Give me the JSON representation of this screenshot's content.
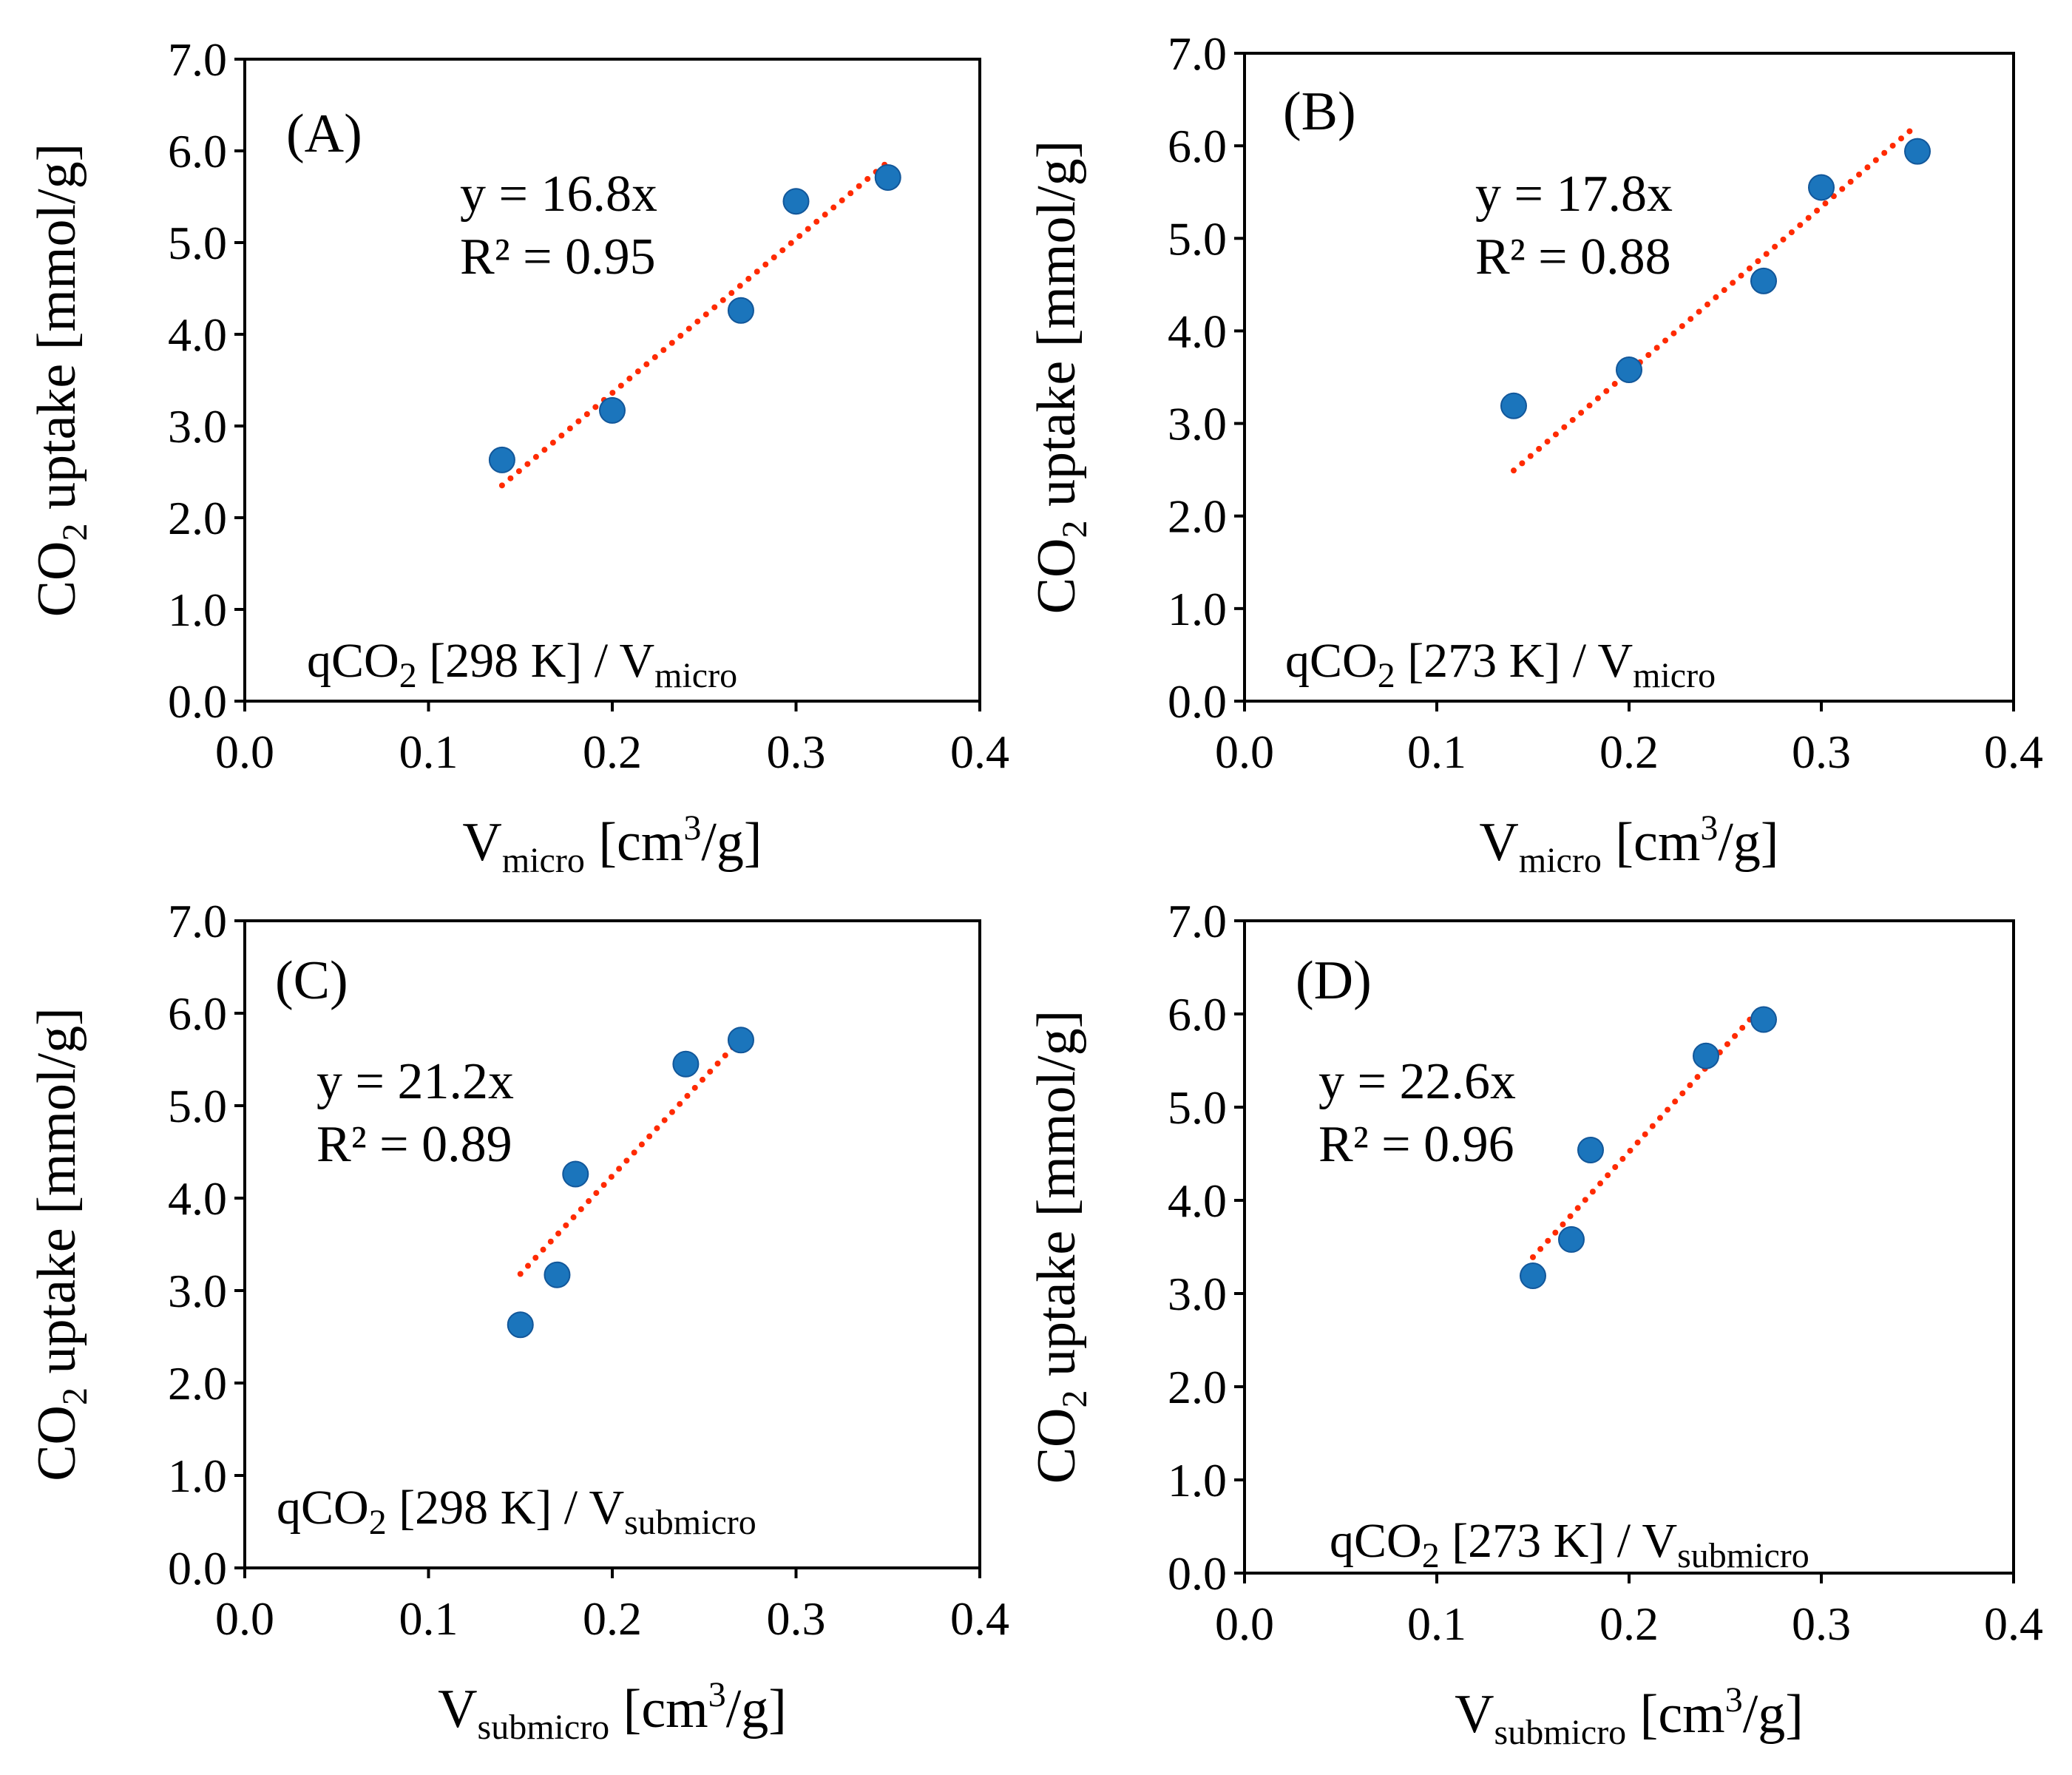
{
  "colors": {
    "point": "#1b75bc",
    "point_edge": "#12579a",
    "trendline": "#ff2a00",
    "axis": "#000000",
    "background": "#ffffff"
  },
  "chart_data": [
    {
      "type": "scatter",
      "panel_label": "(A)",
      "x": [
        0.14,
        0.2,
        0.27,
        0.3,
        0.35
      ],
      "y": [
        2.63,
        3.17,
        4.26,
        5.45,
        5.71
      ],
      "trendline": {
        "type": "linear-through-origin",
        "slope": 16.8,
        "x_range": [
          0.14,
          0.35
        ]
      },
      "equation": "y = 16.8x",
      "r_squared": "R² = 0.95",
      "note": {
        "base": "qCO",
        "sub": "2",
        "mid": " [298 K] / V",
        "tail_sub": "micro"
      },
      "xlabel": {
        "main": "V",
        "sub": "micro",
        "rest": " [cm",
        "sup": "3",
        "end": "/g]"
      },
      "ylabel": {
        "main": "CO",
        "sub": "2",
        "rest": " uptake [mmol/g]"
      },
      "xlim": [
        0.0,
        0.4
      ],
      "ylim": [
        0.0,
        7.0
      ],
      "xticks": [
        "0.0",
        "0.1",
        "0.2",
        "0.3",
        "0.4"
      ],
      "yticks": [
        "0.0",
        "1.0",
        "2.0",
        "3.0",
        "4.0",
        "5.0",
        "6.0",
        "7.0"
      ]
    },
    {
      "type": "scatter",
      "panel_label": "(B)",
      "x": [
        0.14,
        0.2,
        0.27,
        0.3,
        0.35
      ],
      "y": [
        3.19,
        3.58,
        4.54,
        5.55,
        5.94
      ],
      "trendline": {
        "type": "linear-through-origin",
        "slope": 17.8,
        "x_range": [
          0.14,
          0.35
        ]
      },
      "equation": "y = 17.8x",
      "r_squared": "R² = 0.88",
      "note": {
        "base": "qCO",
        "sub": "2",
        "mid": " [273 K] / V",
        "tail_sub": "micro"
      },
      "xlabel": {
        "main": "V",
        "sub": "micro",
        "rest": " [cm",
        "sup": "3",
        "end": "/g]"
      },
      "ylabel": {
        "main": "CO",
        "sub": "2",
        "rest": " uptake [mmol/g]"
      },
      "xlim": [
        0.0,
        0.4
      ],
      "ylim": [
        0.0,
        7.0
      ],
      "xticks": [
        "0.0",
        "0.1",
        "0.2",
        "0.3",
        "0.4"
      ],
      "yticks": [
        "0.0",
        "1.0",
        "2.0",
        "3.0",
        "4.0",
        "5.0",
        "6.0",
        "7.0"
      ]
    },
    {
      "type": "scatter",
      "panel_label": "(C)",
      "x": [
        0.15,
        0.17,
        0.18,
        0.24,
        0.27
      ],
      "y": [
        2.63,
        3.17,
        4.26,
        5.45,
        5.71
      ],
      "trendline": {
        "type": "linear-through-origin",
        "slope": 21.2,
        "x_range": [
          0.15,
          0.27
        ]
      },
      "equation": "y = 21.2x",
      "r_squared": "R² = 0.89",
      "note": {
        "base": "qCO",
        "sub": "2",
        "mid": " [298 K] / V",
        "tail_sub": "submicro"
      },
      "xlabel": {
        "main": "V",
        "sub": "submicro",
        "rest": " [cm",
        "sup": "3",
        "end": "/g]"
      },
      "ylabel": {
        "main": "CO",
        "sub": "2",
        "rest": " uptake [mmol/g]"
      },
      "xlim": [
        0.0,
        0.4
      ],
      "ylim": [
        0.0,
        7.0
      ],
      "xticks": [
        "0.0",
        "0.1",
        "0.2",
        "0.3",
        "0.4"
      ],
      "yticks": [
        "0.0",
        "1.0",
        "2.0",
        "3.0",
        "4.0",
        "5.0",
        "6.0",
        "7.0"
      ]
    },
    {
      "type": "scatter",
      "panel_label": "(D)",
      "x": [
        0.15,
        0.17,
        0.18,
        0.24,
        0.27
      ],
      "y": [
        3.19,
        3.58,
        4.54,
        5.55,
        5.94
      ],
      "trendline": {
        "type": "linear-through-origin",
        "slope": 22.6,
        "x_range": [
          0.15,
          0.27
        ]
      },
      "equation": "y = 22.6x",
      "r_squared": "R² = 0.96",
      "note": {
        "base": "qCO",
        "sub": "2",
        "mid": " [273 K] / V",
        "tail_sub": "submicro"
      },
      "xlabel": {
        "main": "V",
        "sub": "submicro",
        "rest": " [cm",
        "sup": "3",
        "end": "/g]"
      },
      "ylabel": {
        "main": "CO",
        "sub": "2",
        "rest": " uptake [mmol/g]"
      },
      "xlim": [
        0.0,
        0.4
      ],
      "ylim": [
        0.0,
        7.0
      ],
      "xticks": [
        "0.0",
        "0.1",
        "0.2",
        "0.3",
        "0.4"
      ],
      "yticks": [
        "0.0",
        "1.0",
        "2.0",
        "3.0",
        "4.0",
        "5.0",
        "6.0",
        "7.0"
      ]
    }
  ]
}
